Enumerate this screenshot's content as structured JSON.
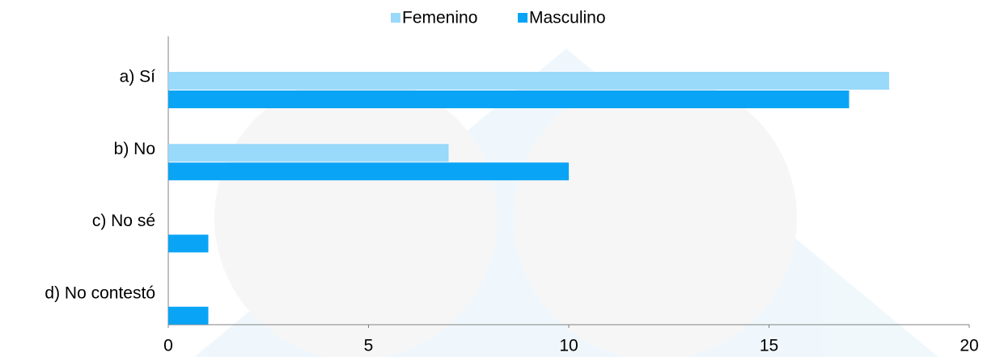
{
  "chart_data": {
    "type": "hbar",
    "categories": [
      "a) Sí",
      "b) No",
      "c) No sé",
      "d) No contestó"
    ],
    "series": [
      {
        "name": "Femenino",
        "color": "#99d9fa",
        "values": [
          18,
          7,
          0,
          0
        ]
      },
      {
        "name": "Masculino",
        "color": "#0aa4f6",
        "values": [
          17,
          10,
          1,
          1
        ]
      }
    ],
    "xlim": [
      0,
      20
    ],
    "xticks": [
      0,
      5,
      10,
      15,
      20
    ],
    "legend": "top"
  }
}
